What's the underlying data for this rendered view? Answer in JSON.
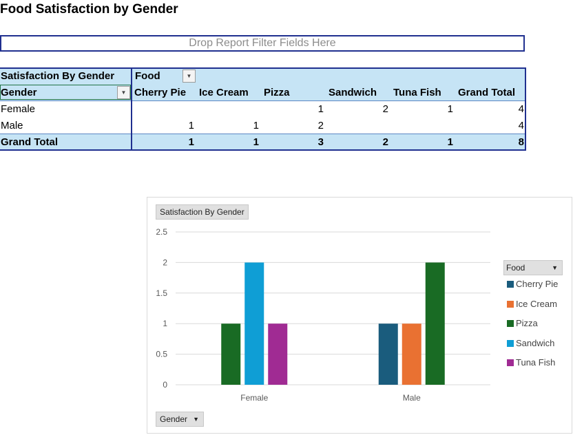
{
  "page": {
    "title": "Food Satisfaction by Gender"
  },
  "report_filter": {
    "placeholder": "Drop Report Filter Fields Here"
  },
  "pivot": {
    "corner_label": "Satisfaction By Gender",
    "column_field": "Food",
    "row_field": "Gender",
    "columns": [
      "Cherry Pie",
      "Ice Cream",
      "Pizza",
      "Sandwich",
      "Tuna Fish",
      "Grand Total"
    ],
    "rows": [
      {
        "label": "Female",
        "values": [
          "",
          "",
          "1",
          "2",
          "1",
          "4"
        ]
      },
      {
        "label": "Male",
        "values": [
          "1",
          "1",
          "2",
          "",
          "",
          "4"
        ]
      }
    ],
    "grand_total": {
      "label": "Grand Total",
      "values": [
        "1",
        "1",
        "3",
        "2",
        "1",
        "8"
      ]
    }
  },
  "chart_data": {
    "type": "bar",
    "title": "Satisfaction By Gender",
    "categories": [
      "Female",
      "Male"
    ],
    "series": [
      {
        "name": "Cherry Pie",
        "color": "#1a5c7d",
        "values": [
          null,
          1
        ]
      },
      {
        "name": "Ice Cream",
        "color": "#e97132",
        "values": [
          null,
          1
        ]
      },
      {
        "name": "Pizza",
        "color": "#196b24",
        "values": [
          1,
          2
        ]
      },
      {
        "name": "Sandwich",
        "color": "#0f9ed5",
        "values": [
          2,
          null
        ]
      },
      {
        "name": "Tuna Fish",
        "color": "#a02b93",
        "values": [
          1,
          null
        ]
      }
    ],
    "ylim": [
      0,
      2.5
    ],
    "yticks": [
      "0",
      "0.5",
      "1",
      "1.5",
      "2",
      "2.5"
    ],
    "grid": true,
    "legend_title": "Food",
    "legend_position": "right",
    "axis_field": "Gender"
  }
}
